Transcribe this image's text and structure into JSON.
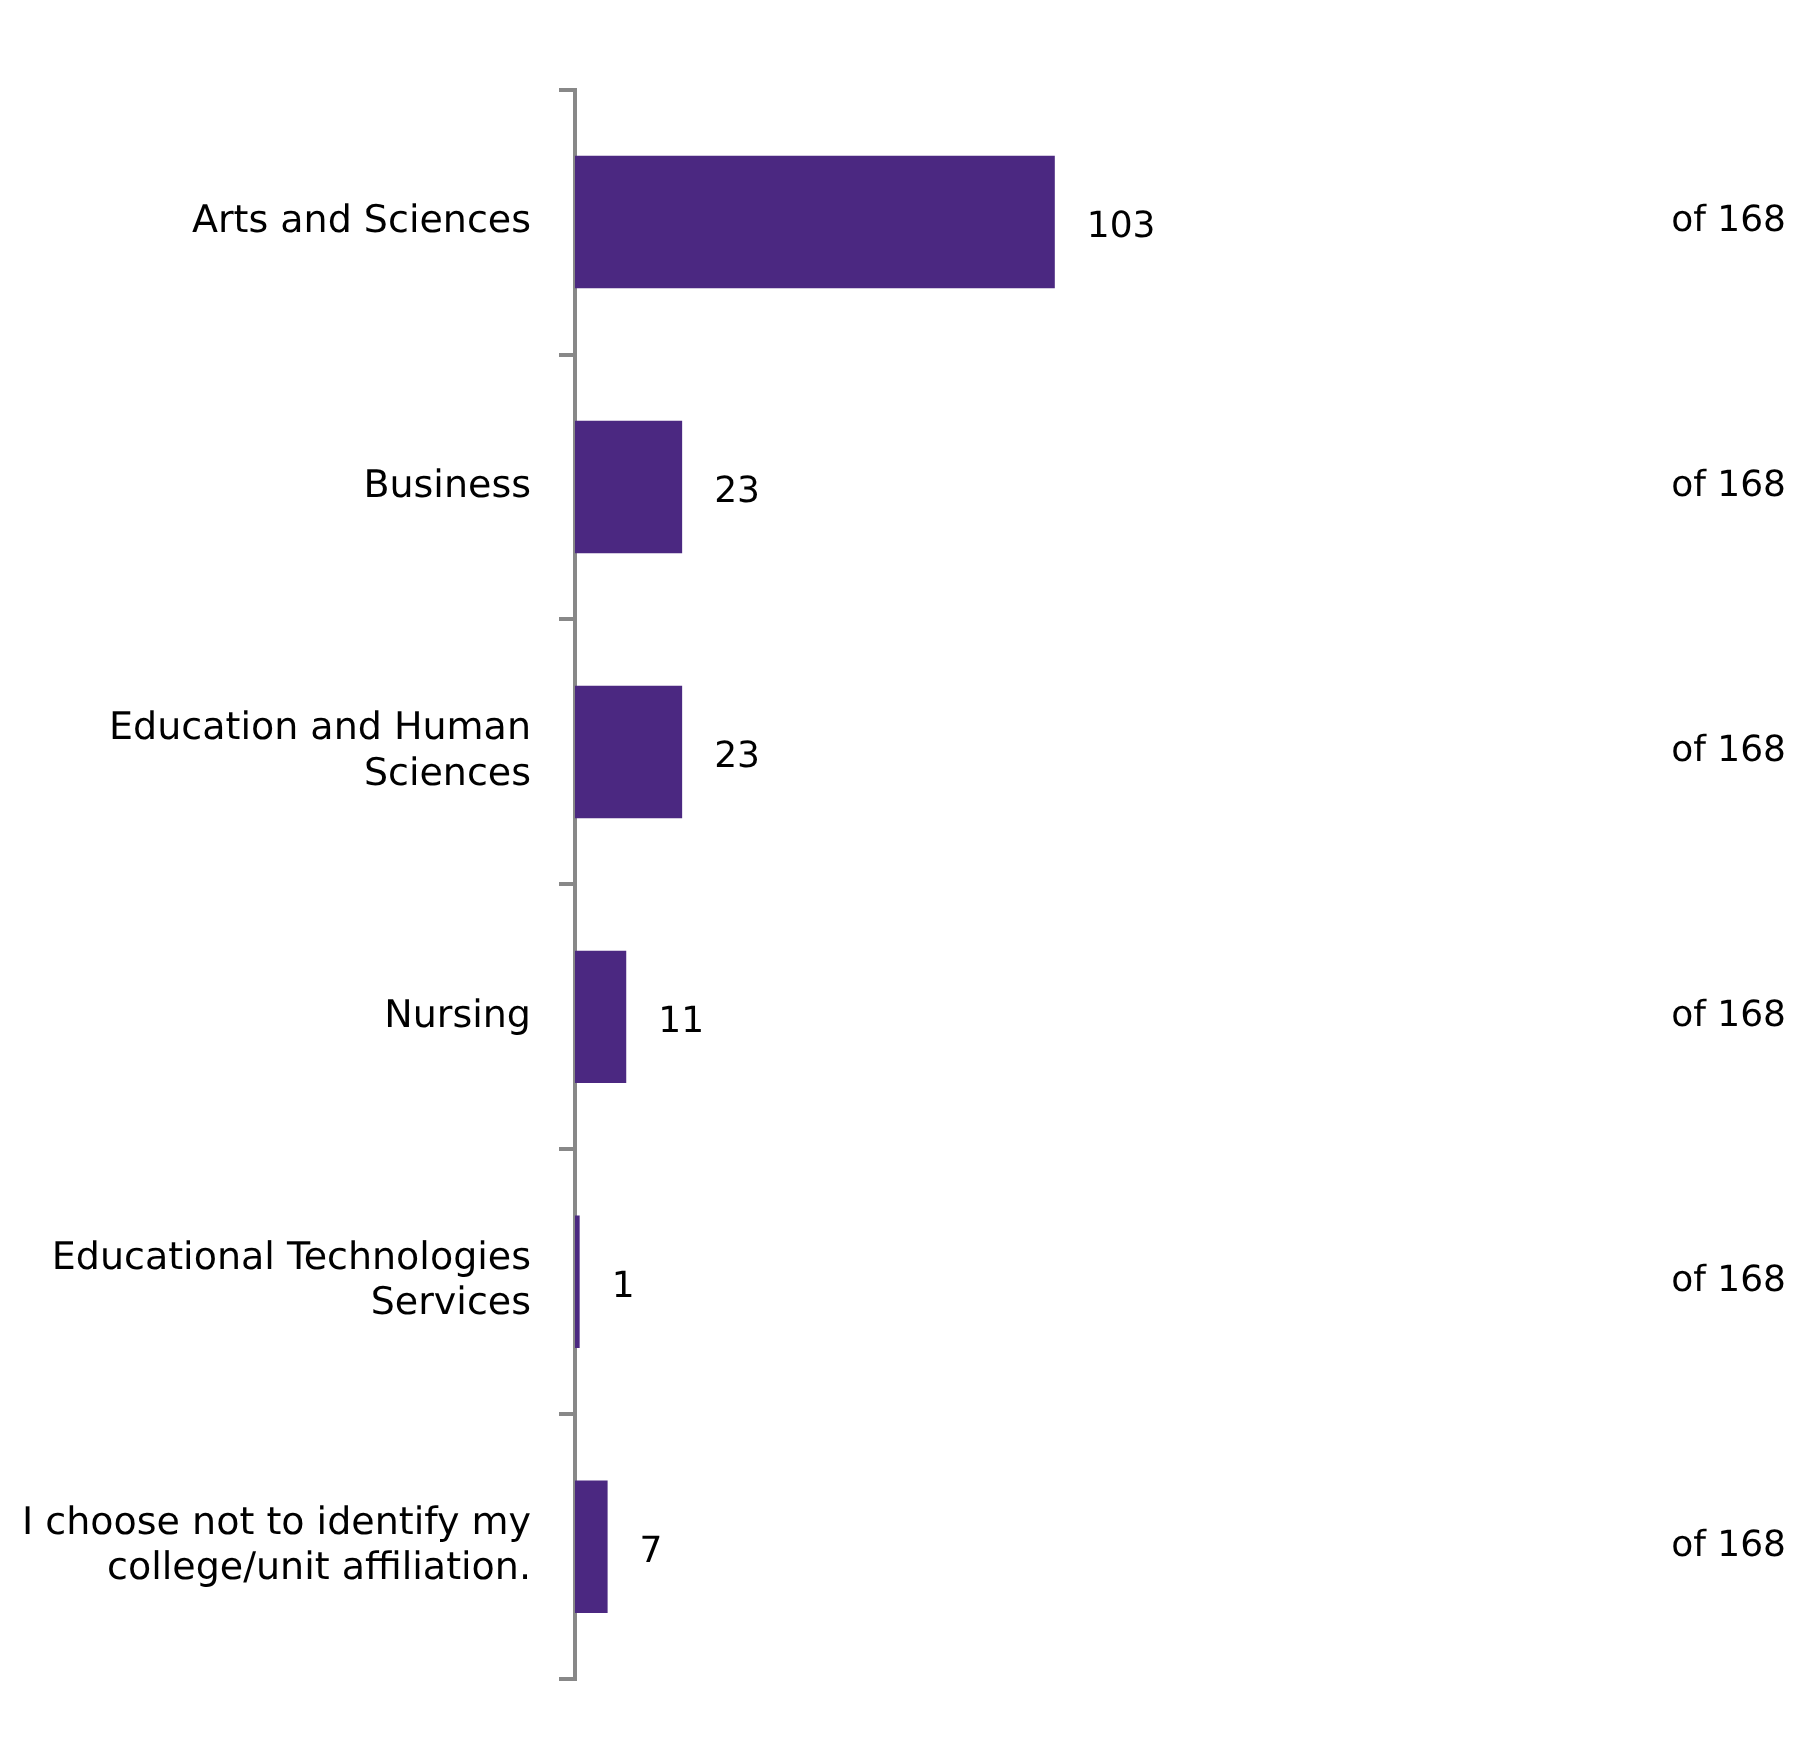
{
  "chart_data": {
    "type": "bar",
    "orientation": "horizontal",
    "categories": [
      "Arts and Sciences",
      "Business",
      "Education and Human Sciences",
      "Nursing",
      "Educational Technologies Services",
      "I choose not to identify my college/unit affiliation."
    ],
    "values": [
      103,
      23,
      23,
      11,
      1,
      7
    ],
    "color": "#4b2881",
    "data_labels": true,
    "grid": false,
    "legend": false,
    "annotations": [
      "of 168",
      "of 168",
      "of 168",
      "of 168",
      "of 168",
      "of 168"
    ]
  }
}
